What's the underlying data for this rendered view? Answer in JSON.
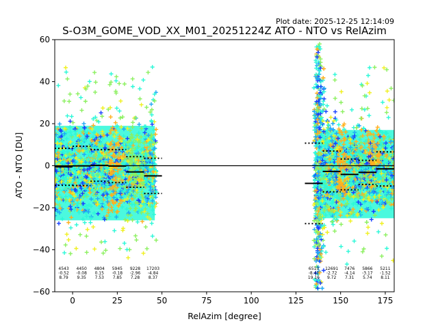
{
  "chart_data": {
    "type": "scatter",
    "plot_date": "Plot date: 2025-12-25 12:14:09",
    "title": "S-O3M_GOME_VOD_XX_M01_20251224Z ATO - NTO vs RelAzim",
    "xlabel": "RelAzim [degree]",
    "ylabel": "ATO - NTO [DU]",
    "xlim": [
      -10,
      180
    ],
    "ylim": [
      -60,
      60
    ],
    "xticks": [
      0,
      25,
      50,
      75,
      100,
      125,
      150,
      175
    ],
    "yticks": [
      -60,
      -40,
      -20,
      0,
      20,
      40,
      60
    ],
    "zero_line": 0,
    "colors": {
      "cyan": "#2cf8d8",
      "lightblue": "#1fa8f5",
      "blue": "#1840ff",
      "green": "#8cf060",
      "yellow": "#f0f020",
      "orange": "#ffb020",
      "black": "#000000"
    },
    "bins": [
      {
        "x0": -10,
        "x1": 0,
        "xc": -5,
        "count": "4543",
        "mean": "-0.52",
        "std": "8.79",
        "mean_val": -0.52,
        "std_val": 8.79
      },
      {
        "x0": 0,
        "x1": 10,
        "xc": 5,
        "count": "4450",
        "mean": "-0.08",
        "std": "9.35",
        "mean_val": -0.08,
        "std_val": 9.35
      },
      {
        "x0": 10,
        "x1": 20,
        "xc": 15,
        "count": "4804",
        "mean": "0.15",
        "std": "7.53",
        "mean_val": 0.15,
        "std_val": 7.53
      },
      {
        "x0": 20,
        "x1": 30,
        "xc": 25,
        "count": "5945",
        "mean": "-0.18",
        "std": "7.85",
        "mean_val": -0.18,
        "std_val": 7.85
      },
      {
        "x0": 30,
        "x1": 40,
        "xc": 35,
        "count": "9228",
        "mean": "-2.96",
        "std": "7.28",
        "mean_val": -2.96,
        "std_val": 7.28
      },
      {
        "x0": 40,
        "x1": 50,
        "xc": 45,
        "count": "17203",
        "mean": "-4.84",
        "std": "8.37",
        "mean_val": -4.84,
        "std_val": 8.37
      },
      {
        "x0": 130,
        "x1": 140,
        "xc": 135,
        "count": "6513",
        "mean": "-8.41",
        "std": "19.16",
        "mean_val": -8.41,
        "std_val": 19.16
      },
      {
        "x0": 140,
        "x1": 150,
        "xc": 145,
        "count": "12691",
        "mean": "-2.72",
        "std": "9.72",
        "mean_val": -2.72,
        "std_val": 9.72
      },
      {
        "x0": 150,
        "x1": 160,
        "xc": 155,
        "count": "7476",
        "mean": "-4.14",
        "std": "7.31",
        "mean_val": -4.14,
        "std_val": 7.31
      },
      {
        "x0": 160,
        "x1": 170,
        "xc": 165,
        "count": "5866",
        "mean": "-3.17",
        "std": "5.74",
        "mean_val": -3.17,
        "std_val": 5.74
      },
      {
        "x0": 170,
        "x1": 180,
        "xc": 175,
        "count": "5211",
        "mean": "-1.52",
        "std": "8.11",
        "mean_val": -1.52,
        "std_val": 8.11
      }
    ],
    "scatter_regions": [
      {
        "x_range": [
          -10,
          47
        ],
        "y_range": [
          -30,
          25
        ],
        "note": "dense band, mixed colors"
      },
      {
        "x_range": [
          135,
          180
        ],
        "y_range": [
          -60,
          58
        ],
        "note": "dense band, widest near 137"
      }
    ]
  }
}
